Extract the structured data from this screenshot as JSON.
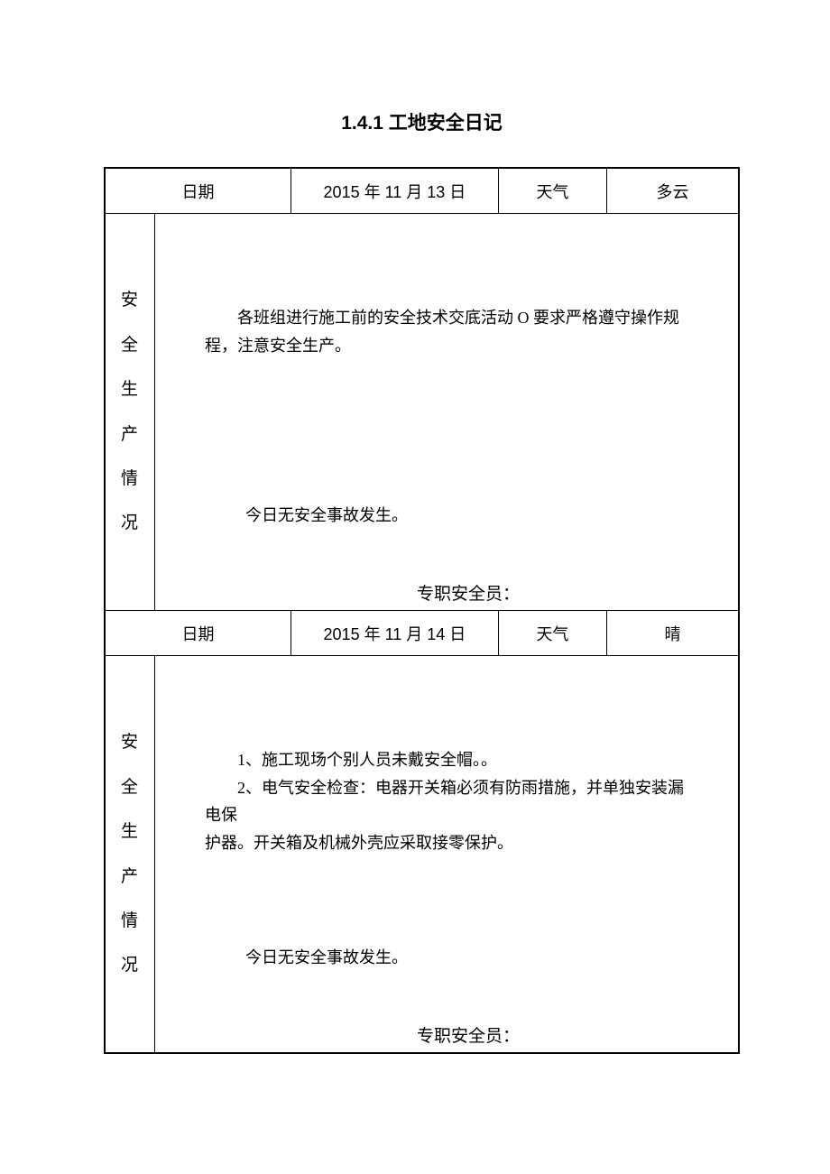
{
  "document": {
    "title": "1.4.1 工地安全日记",
    "entries": [
      {
        "date_label": "日期",
        "date_value": "2015 年 11 月 13 日",
        "weather_label": "天气",
        "weather_value": "多云",
        "side_label": "安全生产情况",
        "content_main": "各班组进行施工前的安全技术交底活动 O 要求严格遵守操作规程，注意安全生产。",
        "content_middle": "今日无安全事故发生。",
        "signer_label": "专职安全员："
      },
      {
        "date_label": "日期",
        "date_value": "2015 年 11 月 14 日",
        "weather_label": "天气",
        "weather_value": "晴",
        "side_label": "安全生产情况",
        "content_line1": "1、施工现场个别人员未戴安全帽。。",
        "content_line2": "2、电气安全检查：电器开关箱必须有防雨措施，并单独安装漏电保",
        "content_line2_cont": "护器。开关箱及机械外壳应采取接零保护。",
        "content_middle": "今日无安全事故发生。",
        "signer_label": "专职安全员："
      }
    ]
  }
}
